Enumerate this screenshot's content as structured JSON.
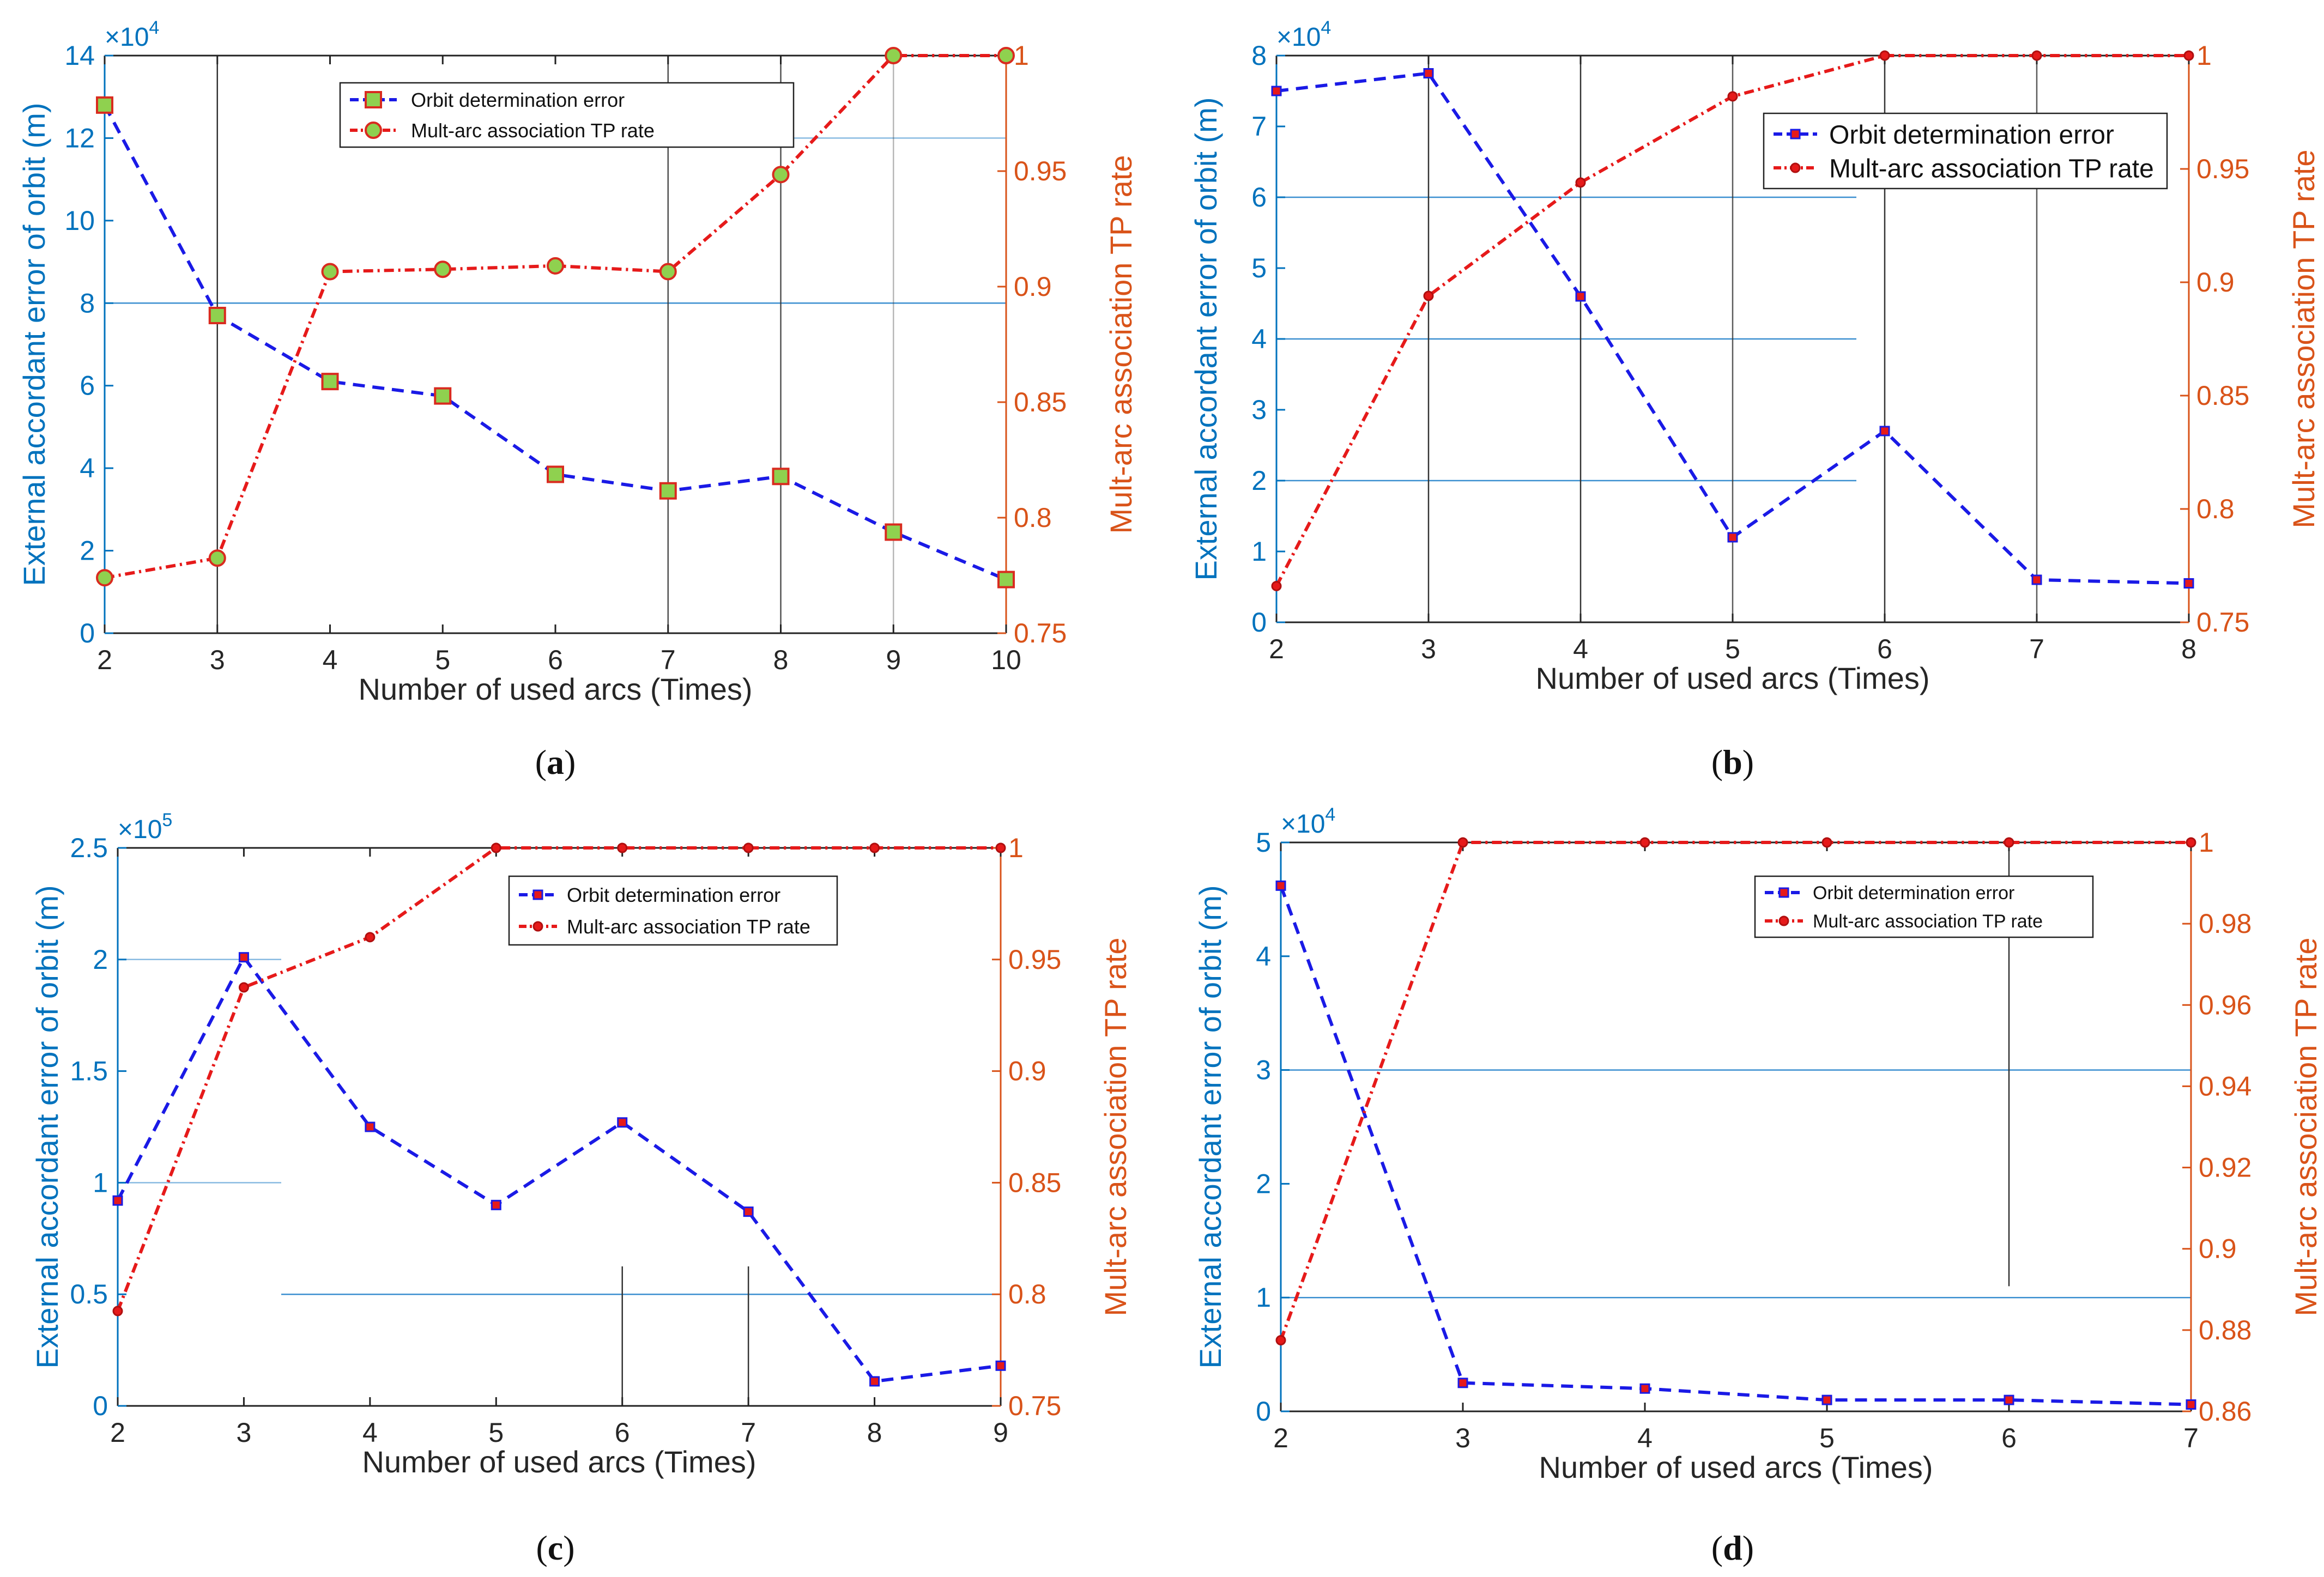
{
  "colors": {
    "left_axis": "#0072BD",
    "right_axis": "#D95319",
    "error_line": "#1A1AE6",
    "tp_line": "#E61A1A",
    "marker_fill_a": "#8FD14F",
    "marker_edge_a": "#D92B1F",
    "gridline": "#3B8FD0",
    "vline": "#333333"
  },
  "chart_data": [
    {
      "id": "a",
      "type": "line",
      "caption_letter": "a",
      "xlabel": "Number of used arcs (Times)",
      "ylabel": "External accordant error of orbit (m)",
      "ylabel_right": "Mult-arc association TP rate",
      "xlim": [
        2,
        10
      ],
      "ylim": [
        0,
        14
      ],
      "ylim_right": [
        0.75,
        1
      ],
      "exponent_base": "×10",
      "exponent_power": "4",
      "xticks": [
        "2",
        "3",
        "4",
        "5",
        "6",
        "7",
        "8",
        "9",
        "10"
      ],
      "yticks": [
        "0",
        "2",
        "4",
        "6",
        "8",
        "10",
        "12",
        "14"
      ],
      "yticks_right": [
        "0.75",
        "0.8",
        "0.85",
        "0.9",
        "0.95",
        "1"
      ],
      "legend_position": "top-center",
      "legend_style": "small",
      "series": [
        {
          "name": "Orbit determination error",
          "axis": "left",
          "marker": "square",
          "style": "dashed",
          "x": [
            2,
            3,
            4,
            5,
            6,
            7,
            8,
            9,
            10
          ],
          "values": [
            12.8,
            7.7,
            6.1,
            5.75,
            3.85,
            3.45,
            3.8,
            2.45,
            1.3
          ]
        },
        {
          "name": "Mult-arc association TP rate",
          "axis": "right",
          "marker": "circle",
          "style": "dashdot",
          "x": [
            2,
            3,
            4,
            5,
            6,
            7,
            8,
            9,
            10
          ],
          "values": [
            0.774,
            0.7825,
            0.9065,
            0.9075,
            0.909,
            0.9065,
            0.9485,
            1.0,
            1.0
          ]
        }
      ]
    },
    {
      "id": "b",
      "type": "line",
      "caption_letter": "b",
      "xlabel": "Number of used arcs (Times)",
      "ylabel": "External accordant error of orbit (m)",
      "ylabel_right": "Mult-arc association TP rate",
      "xlim": [
        2,
        8
      ],
      "ylim": [
        0,
        8
      ],
      "ylim_right": [
        0.75,
        1
      ],
      "exponent_base": "×10",
      "exponent_power": "4",
      "xticks": [
        "2",
        "3",
        "4",
        "5",
        "6",
        "7",
        "8"
      ],
      "yticks": [
        "0",
        "1",
        "2",
        "3",
        "4",
        "5",
        "6",
        "7",
        "8"
      ],
      "yticks_right": [
        "0.75",
        "0.8",
        "0.85",
        "0.9",
        "0.95",
        "1"
      ],
      "legend_position": "top-right",
      "legend_style": "large",
      "series": [
        {
          "name": "Orbit determination error",
          "axis": "left",
          "marker": "square",
          "style": "dashed",
          "x": [
            2,
            3,
            4,
            5,
            6,
            7,
            8
          ],
          "values": [
            7.5,
            7.75,
            4.6,
            1.2,
            2.7,
            0.6,
            0.55
          ]
        },
        {
          "name": "Mult-arc association TP rate",
          "axis": "right",
          "marker": "circle",
          "style": "dashdot",
          "x": [
            2,
            3,
            4,
            5,
            6,
            7,
            8
          ],
          "values": [
            0.766,
            0.894,
            0.944,
            0.982,
            1.0,
            1.0,
            1.0
          ]
        }
      ]
    },
    {
      "id": "c",
      "type": "line",
      "caption_letter": "c",
      "xlabel": "Number of used arcs (Times)",
      "ylabel": "External accordant error of orbit (m)",
      "ylabel_right": "Mult-arc association TP rate",
      "xlim": [
        2,
        9
      ],
      "ylim": [
        0,
        2.5
      ],
      "ylim_right": [
        0.75,
        1
      ],
      "exponent_base": "×10",
      "exponent_power": "5",
      "xticks": [
        "2",
        "3",
        "4",
        "5",
        "6",
        "7",
        "8",
        "9"
      ],
      "yticks": [
        "0",
        "0.5",
        "1",
        "1.5",
        "2",
        "2.5"
      ],
      "yticks_right": [
        "0.75",
        "0.8",
        "0.85",
        "0.9",
        "0.95",
        "1"
      ],
      "legend_position": "top-right",
      "legend_style": "small",
      "series": [
        {
          "name": "Orbit determination error",
          "axis": "left",
          "marker": "square",
          "style": "dashed",
          "x": [
            2,
            3,
            4,
            5,
            6,
            7,
            8,
            9
          ],
          "values": [
            0.92,
            2.01,
            1.25,
            0.9,
            1.27,
            0.87,
            0.11,
            0.18
          ]
        },
        {
          "name": "Mult-arc association TP rate",
          "axis": "right",
          "marker": "circle",
          "style": "dashdot",
          "x": [
            2,
            3,
            4,
            5,
            6,
            7,
            8,
            9
          ],
          "values": [
            0.7925,
            0.9375,
            0.96,
            1.0,
            1.0,
            1.0,
            1.0,
            1.0
          ]
        }
      ]
    },
    {
      "id": "d",
      "type": "line",
      "caption_letter": "d",
      "xlabel": "Number of used arcs (Times)",
      "ylabel": "External accordant error of orbit (m)",
      "ylabel_right": "Mult-arc association TP rate",
      "xlim": [
        2,
        7
      ],
      "ylim": [
        0,
        5
      ],
      "ylim_right": [
        0.86,
        1
      ],
      "exponent_base": "×10",
      "exponent_power": "4",
      "xticks": [
        "2",
        "3",
        "4",
        "5",
        "6",
        "7"
      ],
      "yticks": [
        "0",
        "1",
        "2",
        "3",
        "4",
        "5"
      ],
      "yticks_right": [
        "0.86",
        "0.88",
        "0.9",
        "0.92",
        "0.94",
        "0.96",
        "0.98",
        "1"
      ],
      "legend_position": "top-right",
      "legend_style": "small",
      "series": [
        {
          "name": "Orbit determination error",
          "axis": "left",
          "marker": "square",
          "style": "dashed",
          "x": [
            2,
            3,
            4,
            5,
            6,
            7
          ],
          "values": [
            4.62,
            0.25,
            0.2,
            0.1,
            0.1,
            0.06
          ]
        },
        {
          "name": "Mult-arc association TP rate",
          "axis": "right",
          "marker": "circle",
          "style": "dashdot",
          "x": [
            2,
            3,
            4,
            5,
            6,
            7
          ],
          "values": [
            0.8775,
            1.0,
            1.0,
            1.0,
            1.0,
            1.0
          ]
        }
      ]
    }
  ]
}
